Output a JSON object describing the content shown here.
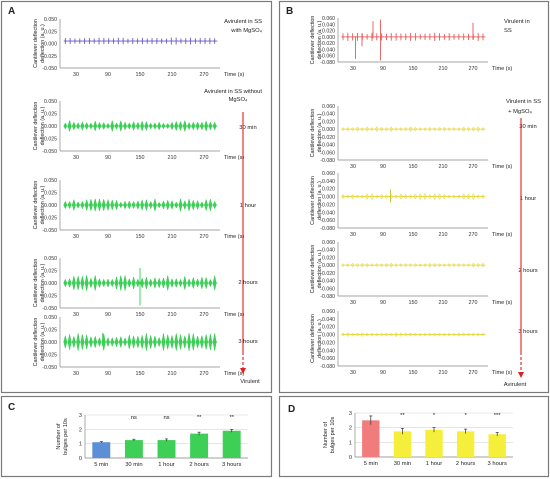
{
  "panels": {
    "A": {
      "letter": "A",
      "plots": [
        {
          "ylabel": "Cantilever deflection (a. u.)",
          "xlabel": "Time (s)",
          "annotation": [
            "Avirulent in SS",
            "with MgSO₄"
          ]
        },
        {
          "ylabel": "Cantilever deflection (a. u.)",
          "xlabel": "Time (s)",
          "annotation": [
            "30 min"
          ]
        },
        {
          "ylabel": "Cantilever deflection (a. u.)",
          "xlabel": "Time (s)",
          "annotation": [
            "1 hour"
          ]
        },
        {
          "ylabel": "Cantilever deflection (a. u.)",
          "xlabel": "Time (s)",
          "annotation": [
            "2 hours"
          ]
        },
        {
          "ylabel": "Cantilever deflection (a. u.)",
          "xlabel": "Time (s)",
          "annotation": [
            "3 hours"
          ]
        }
      ],
      "group_header": [
        "Avirulent in SS without",
        "MgSO₄"
      ],
      "arrow_end_label": "Virulent"
    },
    "B": {
      "letter": "B",
      "plots": [
        {
          "ylabel": "Cantilever deflection (a. u.)",
          "xlabel": "Time (s)",
          "annotation": [
            "Virulent in",
            "SS"
          ]
        },
        {
          "ylabel": "Cantilever deflection (a. u.)",
          "xlabel": "Time (s)",
          "annotation": [
            "30 min"
          ]
        },
        {
          "ylabel": "Cantilever deflection (a. u.)",
          "xlabel": "Time (s)",
          "annotation": [
            "1 hour"
          ]
        },
        {
          "ylabel": "Cantilever deflection (a. u.)",
          "xlabel": "Time (s)",
          "annotation": [
            "2 hours"
          ]
        },
        {
          "ylabel": "Cantilever deflection (a. u.)",
          "xlabel": "Time (s)",
          "annotation": [
            "3 hours"
          ]
        }
      ],
      "group_header": [
        "Virulent in SS",
        "+ MgSO₄"
      ],
      "arrow_end_label": "Avirulent"
    },
    "C": {
      "letter": "C"
    },
    "D": {
      "letter": "D"
    }
  },
  "chart_data": [
    {
      "id": "A1",
      "type": "line",
      "x_ticks": [
        30,
        90,
        150,
        210,
        270
      ],
      "xlim": [
        0,
        300
      ],
      "ylim": [
        -0.05,
        0.05
      ],
      "y_ticks": [
        "0.050",
        "0.025",
        "0.000",
        "-0.025",
        "-0.050"
      ],
      "series_color": "#6f5cc2",
      "marker": "plus",
      "spike_count": 32,
      "spike_amp": 0.003,
      "baseline": 0.005
    },
    {
      "id": "A2",
      "type": "line",
      "x_ticks": [
        30,
        90,
        150,
        210,
        270
      ],
      "xlim": [
        0,
        300
      ],
      "ylim": [
        -0.05,
        0.05
      ],
      "y_ticks": [
        "0.050",
        "0.025",
        "0.000",
        "-0.025",
        "-0.050"
      ],
      "series_color": "#2ecc4a",
      "marker": "diamond",
      "spike_count": 36,
      "spike_amp": 0.008,
      "baseline": 0.0
    },
    {
      "id": "A3",
      "type": "line",
      "x_ticks": [
        30,
        90,
        150,
        210,
        270
      ],
      "xlim": [
        0,
        300
      ],
      "ylim": [
        -0.05,
        0.05
      ],
      "y_ticks": [
        "0.050",
        "0.025",
        "0.000",
        "-0.025",
        "-0.050"
      ],
      "series_color": "#2ecc4a",
      "marker": "diamond",
      "spike_count": 36,
      "spike_amp": 0.009,
      "baseline": 0.0
    },
    {
      "id": "A4",
      "type": "line",
      "x_ticks": [
        30,
        90,
        150,
        210,
        270
      ],
      "xlim": [
        0,
        300
      ],
      "ylim": [
        -0.05,
        0.05
      ],
      "y_ticks": [
        "0.050",
        "0.025",
        "0.000",
        "-0.025",
        "-0.050"
      ],
      "series_color": "#2ecc4a",
      "marker": "diamond",
      "spike_count": 36,
      "spike_amp": 0.012,
      "baseline": 0.0
    },
    {
      "id": "A5",
      "type": "line",
      "x_ticks": [
        30,
        90,
        150,
        210,
        270
      ],
      "xlim": [
        0,
        300
      ],
      "ylim": [
        -0.05,
        0.05
      ],
      "y_ticks": [
        "0.050",
        "0.025",
        "0.000",
        "-0.025",
        "-0.050"
      ],
      "series_color": "#2ecc4a",
      "marker": "diamond",
      "spike_count": 36,
      "spike_amp": 0.013,
      "baseline": 0.0
    },
    {
      "id": "B1",
      "type": "line",
      "x_ticks": [
        30,
        90,
        150,
        210,
        270
      ],
      "xlim": [
        0,
        300
      ],
      "ylim": [
        -0.08,
        0.06
      ],
      "y_ticks": [
        "0.060",
        "0.040",
        "0.020",
        "0.000",
        "-0.020",
        "-0.040",
        "-0.060",
        "-0.080"
      ],
      "series_color": "#e85a5a",
      "marker": "plus",
      "spike_count": 30,
      "spike_amp": 0.006,
      "baseline": 0.0
    },
    {
      "id": "B2",
      "type": "line",
      "x_ticks": [
        30,
        90,
        150,
        210,
        270
      ],
      "xlim": [
        0,
        300
      ],
      "ylim": [
        -0.08,
        0.06
      ],
      "y_ticks": [
        "0.060",
        "0.040",
        "0.020",
        "0.000",
        "-0.020",
        "-0.040",
        "-0.060",
        "-0.080"
      ],
      "series_color": "#e3d83a",
      "marker": "diamond",
      "spike_count": 30,
      "spike_amp": 0.005,
      "baseline": 0.0
    },
    {
      "id": "B3",
      "type": "line",
      "x_ticks": [
        30,
        90,
        150,
        210,
        270
      ],
      "xlim": [
        0,
        300
      ],
      "ylim": [
        -0.08,
        0.06
      ],
      "y_ticks": [
        "0.060",
        "0.040",
        "0.020",
        "0.000",
        "-0.020",
        "-0.040",
        "-0.060",
        "-0.080"
      ],
      "series_color": "#e3d83a",
      "marker": "diamond",
      "spike_count": 30,
      "spike_amp": 0.006,
      "baseline": 0.0
    },
    {
      "id": "B4",
      "type": "line",
      "x_ticks": [
        30,
        90,
        150,
        210,
        270
      ],
      "xlim": [
        0,
        300
      ],
      "ylim": [
        -0.08,
        0.06
      ],
      "y_ticks": [
        "0.060",
        "0.040",
        "0.020",
        "0.000",
        "-0.020",
        "-0.040",
        "-0.060",
        "-0.080"
      ],
      "series_color": "#e3d83a",
      "marker": "diamond",
      "spike_count": 30,
      "spike_amp": 0.004,
      "baseline": 0.0
    },
    {
      "id": "B5",
      "type": "line",
      "x_ticks": [
        30,
        90,
        150,
        210,
        270
      ],
      "xlim": [
        0,
        300
      ],
      "ylim": [
        -0.08,
        0.06
      ],
      "y_ticks": [
        "0.060",
        "0.040",
        "0.020",
        "0.000",
        "-0.020",
        "-0.040",
        "-0.060",
        "-0.080"
      ],
      "series_color": "#e3d83a",
      "marker": "diamond",
      "spike_count": 30,
      "spike_amp": 0.004,
      "baseline": 0.0
    },
    {
      "id": "C",
      "type": "bar",
      "ylabel": "Number of bulges per 10s",
      "categories": [
        "5 min",
        "30 min",
        "1 hour",
        "2 hours",
        "3 hours"
      ],
      "values": [
        1.1,
        1.25,
        1.25,
        1.7,
        1.9
      ],
      "errors": [
        0.05,
        0.06,
        0.08,
        0.1,
        0.1
      ],
      "colors": [
        "#5b8fd6",
        "#3ecf57",
        "#3ecf57",
        "#3ecf57",
        "#3ecf57"
      ],
      "significance": [
        "",
        "ns",
        "ns",
        "**",
        "**"
      ],
      "ylim": [
        0,
        3
      ],
      "y_ticks": [
        0,
        1,
        2,
        3
      ],
      "grid": true
    },
    {
      "id": "D",
      "type": "bar",
      "ylabel": "Number of bulges per 10s",
      "categories": [
        "5 min",
        "30 min",
        "1 hour",
        "2 hours",
        "3 hours"
      ],
      "values": [
        2.5,
        1.75,
        1.85,
        1.75,
        1.55
      ],
      "errors": [
        0.3,
        0.2,
        0.15,
        0.15,
        0.12
      ],
      "colors": [
        "#f07c7c",
        "#f5ee3a",
        "#f5ee3a",
        "#f5ee3a",
        "#f5ee3a"
      ],
      "significance": [
        "",
        "**",
        "*",
        "*",
        "***"
      ],
      "ylim": [
        0,
        3
      ],
      "y_ticks": [
        0,
        1,
        2,
        3
      ],
      "grid": true
    }
  ],
  "colors": {
    "arrow": "#e02020",
    "frame": "#7a7a7a"
  }
}
